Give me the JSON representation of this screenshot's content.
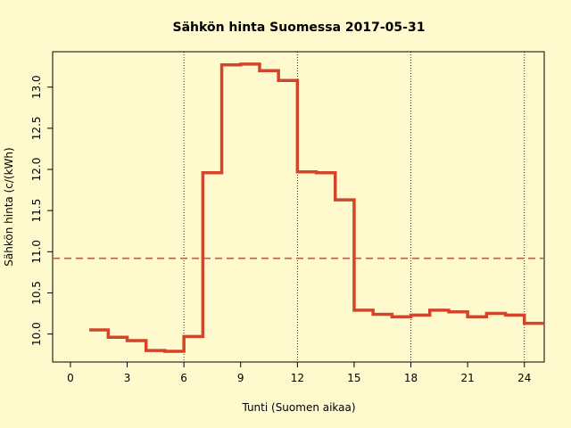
{
  "chart_data": {
    "type": "step",
    "title": "Sähkön hinta Suomessa 2017-05-31",
    "x_label": "Tunti (Suomen aikaa)",
    "y_label": "Sähkön hinta (c/(kWh)",
    "x": [
      1,
      2,
      3,
      4,
      5,
      6,
      7,
      8,
      9,
      10,
      11,
      12,
      13,
      14,
      15,
      16,
      17,
      18,
      19,
      20,
      21,
      22,
      23,
      24
    ],
    "values": [
      10.05,
      9.96,
      9.92,
      9.8,
      9.79,
      9.97,
      11.96,
      13.27,
      13.28,
      13.2,
      13.08,
      11.97,
      11.96,
      11.63,
      10.29,
      10.24,
      10.21,
      10.23,
      10.29,
      10.27,
      10.21,
      10.25,
      10.23,
      10.13
    ],
    "color": "#d2452a",
    "mean": 10.92,
    "mean_color": "#e0503a",
    "xlim": [
      -0.94,
      25.05
    ],
    "ylim": [
      9.66,
      13.43
    ],
    "xticks": [
      0,
      3,
      6,
      9,
      12,
      15,
      18,
      21,
      24
    ],
    "yticks": [
      {
        "value": 10,
        "label": "10.0"
      },
      {
        "value": 10.5,
        "label": "10.5"
      },
      {
        "value": 11,
        "label": "11.0"
      },
      {
        "value": 11.5,
        "label": "11.5"
      },
      {
        "value": 12,
        "label": "12.0"
      },
      {
        "value": 12.5,
        "label": "12.5"
      },
      {
        "value": 13,
        "label": "13.0"
      }
    ],
    "vlines": [
      6,
      12,
      18,
      24
    ]
  }
}
